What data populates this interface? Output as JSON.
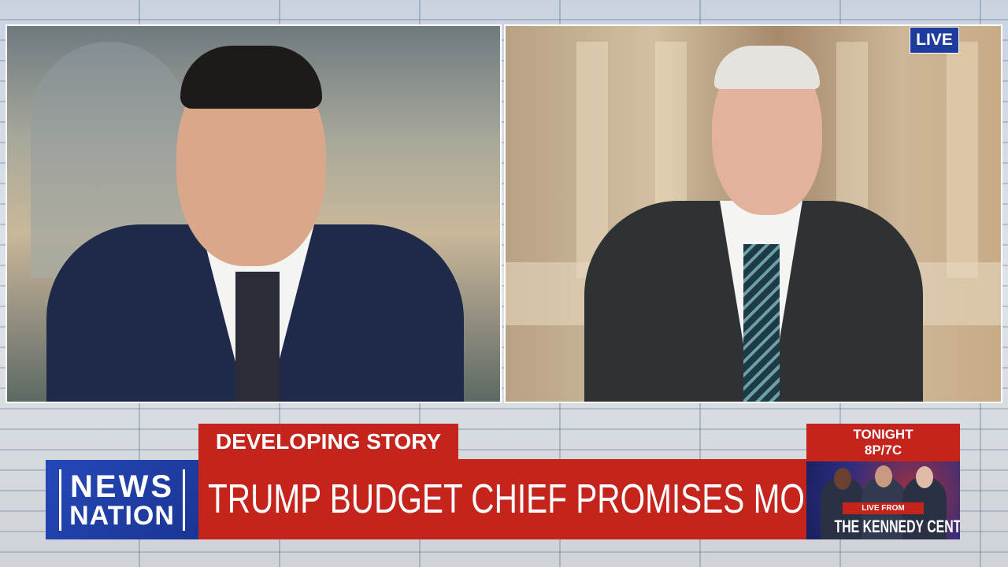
{
  "live_badge": "LIVE",
  "lower_third": {
    "label": "DEVELOPING STORY",
    "headline": "TRUMP BUDGET CHIEF PROMISES MORE LAYOFFS",
    "network_logo": {
      "line1": "NEWS",
      "line2": "NATION"
    }
  },
  "promo": {
    "line1": "TONIGHT",
    "line2": "8P/7C",
    "tag": "LIVE FROM",
    "title": "THE KENNEDY CENTER"
  },
  "colors": {
    "red": "#c4241c",
    "blue": "#1e3c9b"
  }
}
